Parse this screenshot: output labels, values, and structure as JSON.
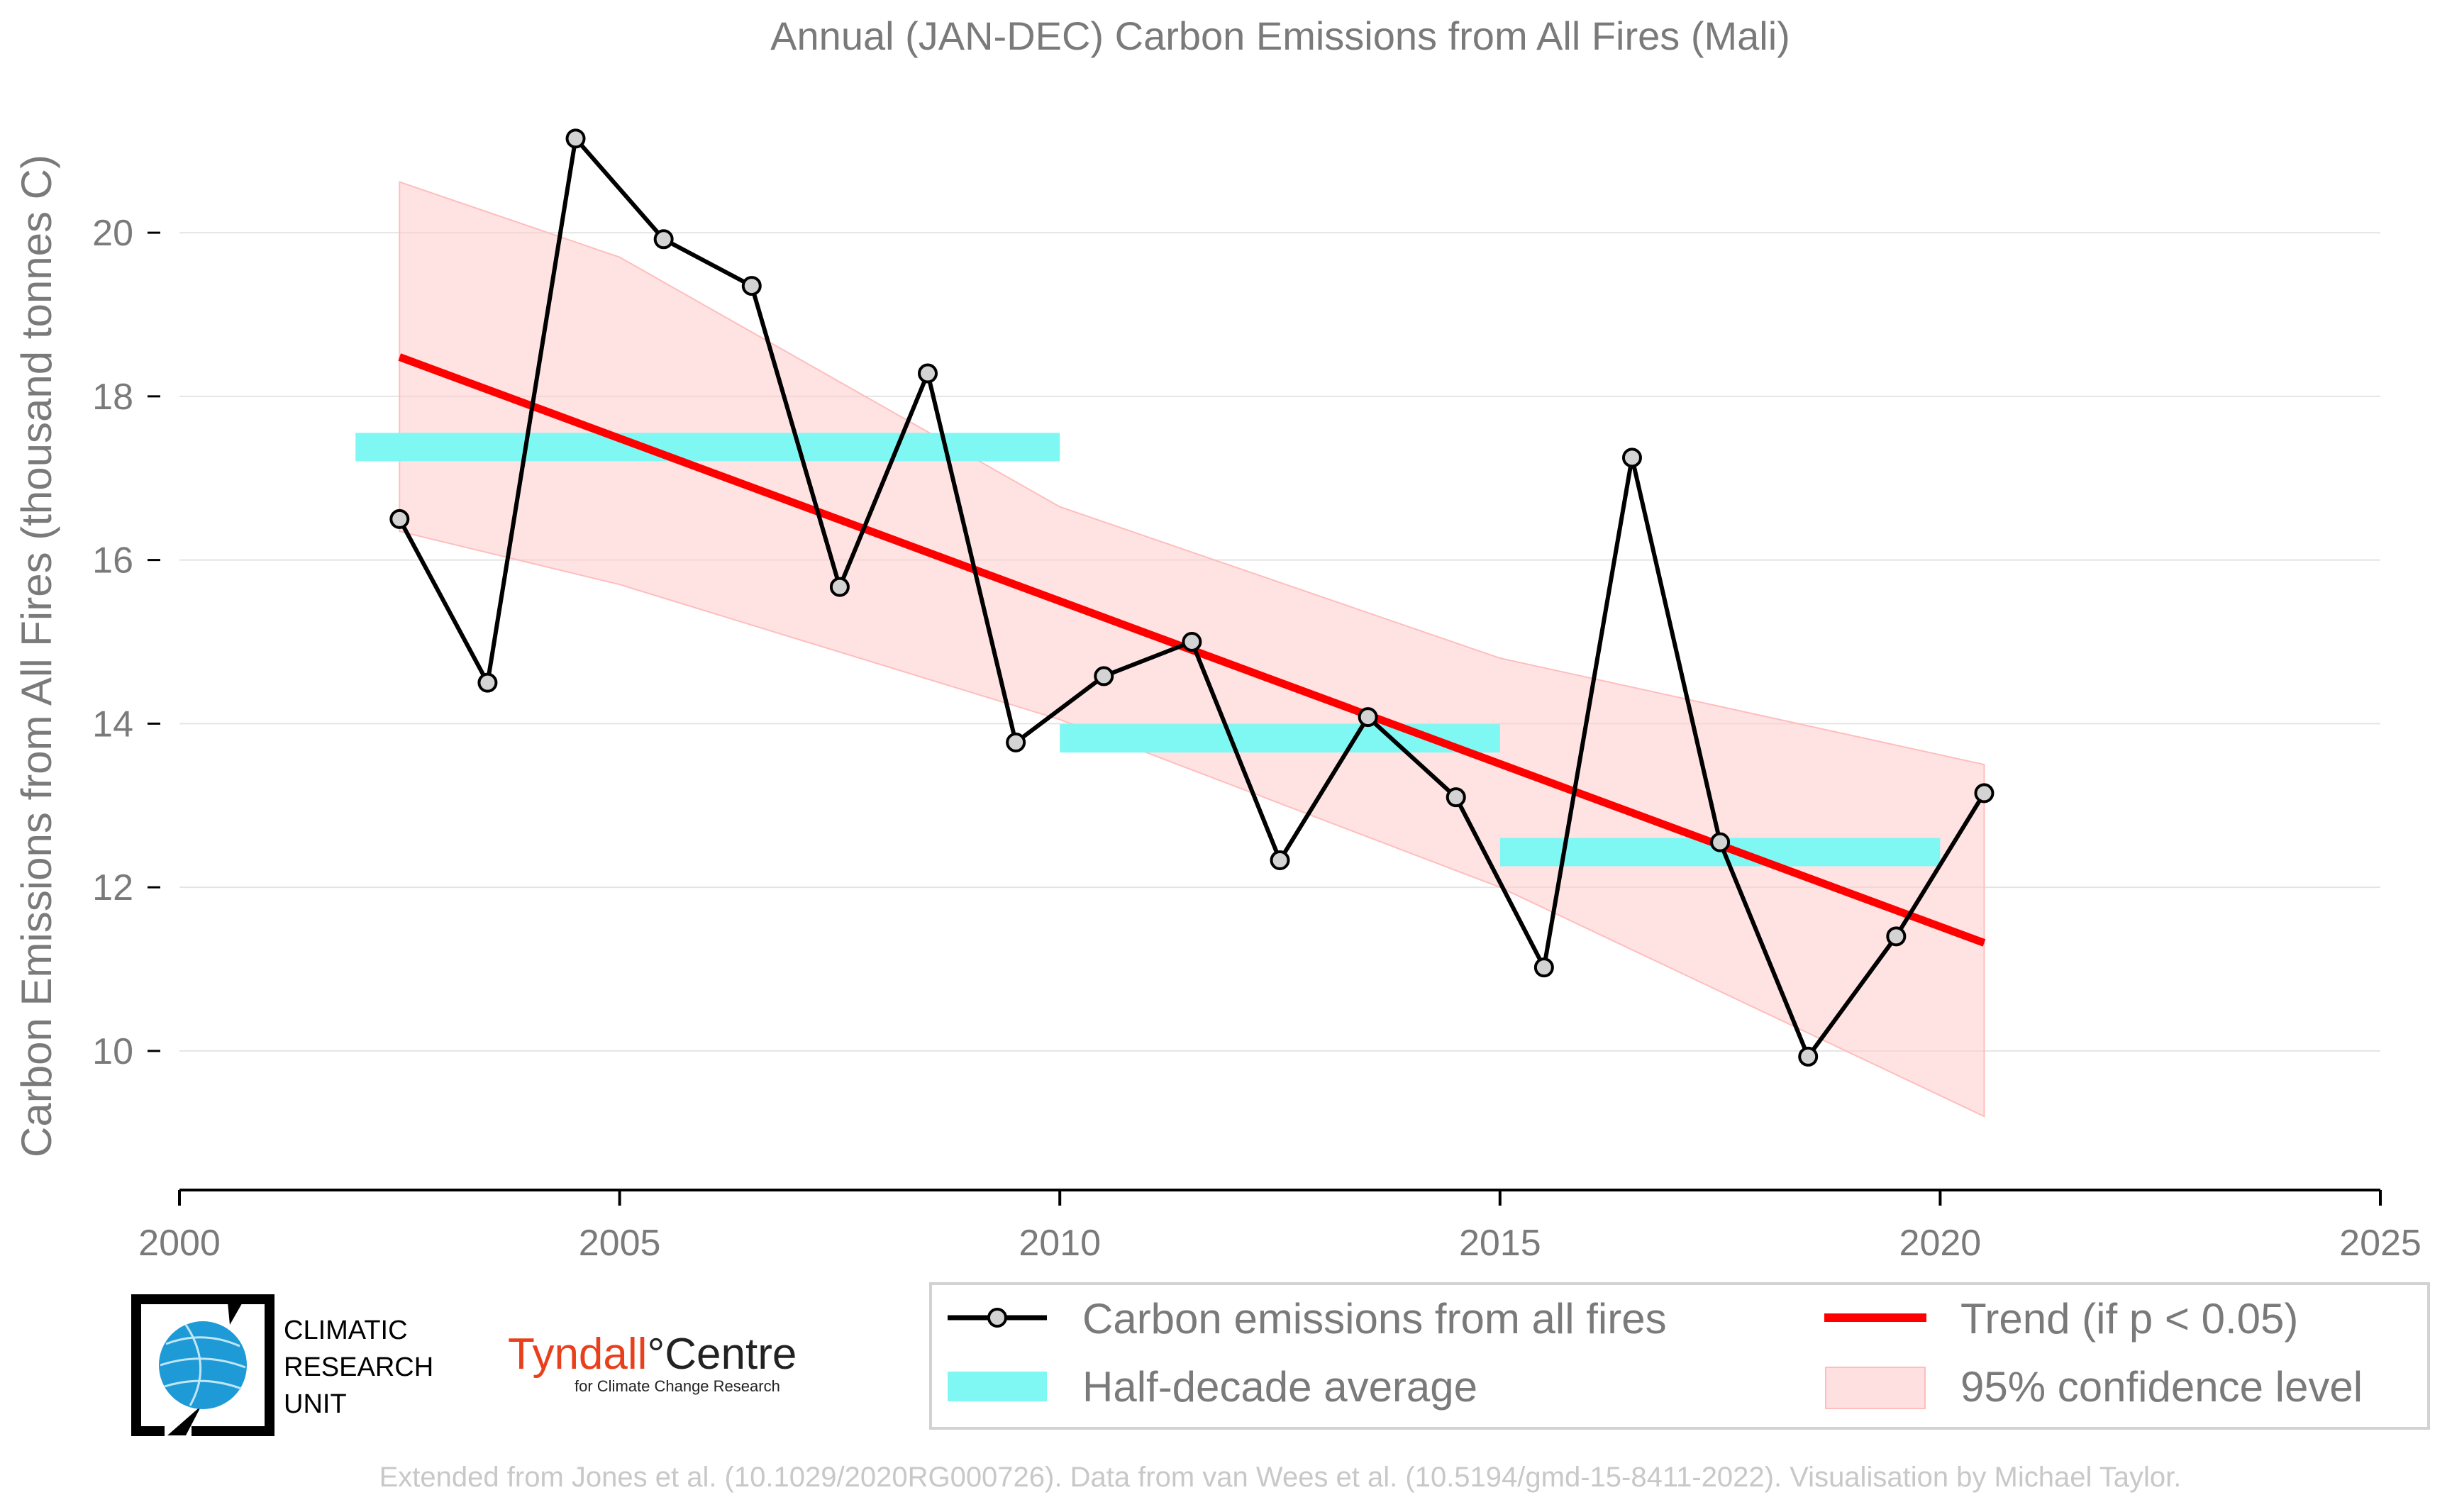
{
  "chart_data": {
    "type": "line",
    "title": "Annual (JAN-DEC) Carbon Emissions from All Fires (Mali)",
    "xlabel": "",
    "ylabel": "Carbon Emissions from All Fires (thousand tonnes C)",
    "xlim": [
      2000,
      2025
    ],
    "ylim": [
      8.3,
      21.5
    ],
    "x_ticks": [
      "2000",
      "2005",
      "2010",
      "2015",
      "2020",
      "2025"
    ],
    "y_ticks": [
      "10",
      "12",
      "14",
      "16",
      "18",
      "20"
    ],
    "grid": "horizontal",
    "legend_position": "bottom-right",
    "series": [
      {
        "name": "Carbon emissions from all fires",
        "style": "line-with-markers",
        "color": "#000000",
        "x": [
          2002.5,
          2003.5,
          2004.5,
          2005.5,
          2006.5,
          2007.5,
          2008.5,
          2009.5,
          2010.5,
          2011.5,
          2012.5,
          2013.5,
          2014.5,
          2015.5,
          2016.5,
          2017.5,
          2018.5,
          2019.5,
          2020.5
        ],
        "y": [
          16.5,
          14.5,
          21.15,
          19.92,
          19.35,
          15.67,
          18.28,
          13.77,
          14.58,
          15.0,
          12.33,
          14.08,
          13.1,
          11.02,
          17.25,
          12.55,
          9.93,
          11.4,
          13.15
        ]
      },
      {
        "name": "Half-decade average",
        "style": "bars",
        "color": "#7ff8f4",
        "segments": [
          {
            "x0": 2002,
            "x1": 2010,
            "value": 17.38
          },
          {
            "x0": 2010,
            "x1": 2015,
            "value": 13.82
          },
          {
            "x0": 2015,
            "x1": 2020,
            "value": 12.43
          }
        ]
      },
      {
        "name": "Trend (if p < 0.05)",
        "style": "line",
        "color": "#ff0000",
        "x": [
          2002.5,
          2020.5
        ],
        "y": [
          18.48,
          11.32
        ]
      },
      {
        "name": "95% confidence level",
        "style": "band",
        "color": "#ffcccc",
        "x": [
          2002.5,
          2005,
          2010,
          2015,
          2020.5
        ],
        "upper": [
          20.62,
          19.7,
          16.65,
          14.8,
          13.5
        ],
        "lower": [
          16.35,
          15.7,
          14.05,
          12.0,
          9.2
        ]
      }
    ]
  },
  "legend": {
    "items": [
      {
        "label": "Carbon emissions from all fires"
      },
      {
        "label": "Trend (if p < 0.05)"
      },
      {
        "label": "Half-decade average"
      },
      {
        "label": "95% confidence level"
      }
    ]
  },
  "logos": {
    "cru_lines": [
      "CLIMATIC",
      "RESEARCH",
      "UNIT"
    ],
    "tyndall_part1": "Tyndall",
    "tyndall_part2": "°Centre",
    "tyndall_sub": "for Climate Change Research"
  },
  "footer": "Extended from Jones et al. (10.1029/2020RG000726). Data from van Wees et al. (10.5194/gmd-15-8411-2022). Visualisation by Michael Taylor.",
  "colors": {
    "series_line": "#000000",
    "marker_fill": "#d3d3d3",
    "trend": "#ff0000",
    "half_decade": "#7ff8f4",
    "band": "#ffcccc",
    "grid": "#e4e4e4",
    "text": "#7a7a7a"
  }
}
